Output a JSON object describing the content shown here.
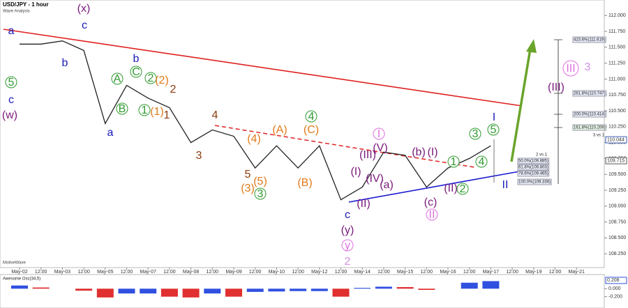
{
  "chart_data": {
    "type": "line",
    "title": "USD/JPY - 1 hour",
    "subtitle": "Wave Analysis",
    "watermark": "MotiveWave",
    "categories": [
      "May-02",
      "12:00",
      "May-03",
      "12:00",
      "May-05",
      "12:00",
      "May-07",
      "12:00",
      "May-08",
      "12:00",
      "May-09",
      "12:00",
      "May-10",
      "12:00",
      "May-12",
      "12:00",
      "May-14",
      "12:00",
      "May-15",
      "12:00",
      "May-16",
      "12:00",
      "May-17",
      "12:00",
      "May-19",
      "12:00",
      "May-21"
    ],
    "series": [
      {
        "name": "USD/JPY",
        "color": "#222222",
        "values": [
          111.55,
          111.55,
          111.6,
          111.45,
          110.3,
          110.9,
          110.7,
          110.55,
          110.0,
          110.2,
          110.1,
          109.6,
          109.95,
          109.6,
          109.95,
          109.1,
          109.3,
          109.85,
          109.8,
          109.3,
          109.6,
          109.75,
          109.95,
          null,
          null,
          null,
          null
        ]
      }
    ],
    "ylim": [
      108.0,
      112.2
    ],
    "yticks": [
      {
        "value": 108.25,
        "label": "108.250"
      },
      {
        "value": 108.5,
        "label": "108.500"
      },
      {
        "value": 108.75,
        "label": "108.750"
      },
      {
        "value": 109.0,
        "label": "109.000"
      },
      {
        "value": 109.25,
        "label": "109.250"
      },
      {
        "value": 109.5,
        "label": "109.500"
      },
      {
        "value": 109.75,
        "label": "109.750"
      },
      {
        "value": 110.0,
        "label": "110.000"
      },
      {
        "value": 110.25,
        "label": "110.250"
      },
      {
        "value": 110.5,
        "label": "110.500"
      },
      {
        "value": 110.75,
        "label": "110.750"
      },
      {
        "value": 111.0,
        "label": "111.000"
      },
      {
        "value": 111.25,
        "label": "111.250"
      },
      {
        "value": 111.5,
        "label": "111.500"
      },
      {
        "value": 111.75,
        "label": "111.750"
      },
      {
        "value": 112.0,
        "label": "112.000"
      }
    ],
    "price_tags": [
      {
        "value": 110.044,
        "label": "110.044",
        "color": "#3b5bb5"
      },
      {
        "value": 109.715,
        "label": "109.715",
        "color": "#555555"
      }
    ],
    "fib_labels": [
      "423.6%(111.619)",
      "261.8%(110.747)",
      "200.0%(110.414)",
      "161.8%(110.209)",
      "3 vs 1",
      "2 vs 1",
      "50.0%(109.885)",
      "61.8%(109.803)",
      "78.6%(109.465)",
      "100.0%(109.336)"
    ],
    "wave_labels": [
      {
        "color": "#1a1ab8",
        "circled": false,
        "labels": [
          "a",
          "c",
          "c",
          "b",
          "b",
          "a",
          "c",
          "I",
          "II"
        ]
      },
      {
        "color": "#7a1a7a",
        "circled": false,
        "labels": [
          "(x)",
          "(w)",
          "(y)",
          "(III)",
          "(IV)",
          "(II)",
          "(I)",
          "(a)",
          "(b)",
          "(I)",
          "(c)",
          "(II)",
          "(V)",
          "(III)"
        ]
      },
      {
        "color": "#2e9a2e",
        "circled": true,
        "labels": [
          "5",
          "A",
          "B",
          "C",
          "2",
          "1",
          "3",
          "4",
          "3",
          "5",
          "4",
          "1",
          "2"
        ]
      },
      {
        "color": "#e07a1a",
        "circled": false,
        "labels": [
          "(2)",
          "(1)",
          "(4)",
          "(3)",
          "(5)",
          "(A)",
          "(C)",
          "(B)"
        ]
      },
      {
        "color": "#8a3a0a",
        "circled": false,
        "labels": [
          "2",
          "1",
          "4",
          "3",
          "5"
        ]
      },
      {
        "color": "#e070e0",
        "circled": true,
        "labels": [
          "I",
          "II",
          "y",
          "III"
        ]
      },
      {
        "color": "#d090e0",
        "circled": false,
        "labels": [
          "3",
          "2"
        ]
      }
    ],
    "oscillator": {
      "title": "Awesome Osc(34,5)",
      "values": [
        0.08,
        0.03,
        0.0,
        -0.05,
        -0.22,
        -0.12,
        -0.12,
        -0.2,
        -0.22,
        -0.12,
        -0.2,
        -0.08,
        -0.07,
        -0.06,
        -0.06,
        -0.2,
        0.02,
        0.05,
        0.04,
        -0.03,
        0.0,
        0.15,
        0.19,
        null,
        null,
        null,
        null
      ],
      "ylim": [
        -0.45,
        0.25
      ],
      "yticks": [
        {
          "value": 0.0,
          "label": "0.000"
        },
        {
          "value": -0.2,
          "label": "-0.200"
        }
      ],
      "tag": {
        "value": 0.208,
        "label": "0.208"
      }
    }
  }
}
